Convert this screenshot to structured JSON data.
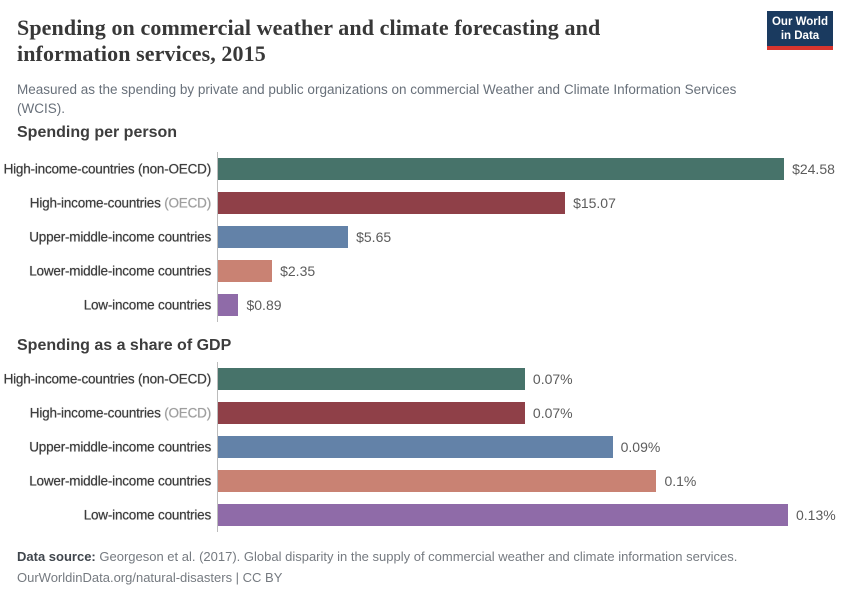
{
  "header": {
    "title": "Spending on commercial weather and climate forecasting and information services, 2015",
    "subtitle": "Measured as the spending by private and public organizations on commercial Weather and Climate Information Services (WCIS).",
    "logo": {
      "line1": "Our World",
      "line2": "in Data"
    }
  },
  "chart_data": [
    {
      "type": "bar",
      "title": "Spending per person",
      "xlabel": "",
      "ylabel": "",
      "xlim": [
        0,
        24.75
      ],
      "grid": false,
      "legend": false,
      "categories": [
        "High-income-countries (non-OECD)",
        "High-income-countries (OECD)",
        "Upper-middle-income countries",
        "Lower-middle-income countries",
        "Low-income countries"
      ],
      "values": [
        24.58,
        15.07,
        5.65,
        2.35,
        0.89
      ],
      "rows": [
        {
          "label": "High-income-countries (non-OECD)",
          "label_muted": "",
          "value": 24.58,
          "value_label": "$24.58",
          "color": "#47736a"
        },
        {
          "label": "High-income-countries",
          "label_muted": "(OECD)",
          "value": 15.07,
          "value_label": "$15.07",
          "color": "#8f4048"
        },
        {
          "label": "Upper-middle-income countries",
          "label_muted": "",
          "value": 5.65,
          "value_label": "$5.65",
          "color": "#6382a8"
        },
        {
          "label": "Lower-middle-income countries",
          "label_muted": "",
          "value": 2.35,
          "value_label": "$2.35",
          "color": "#c98273"
        },
        {
          "label": "Low-income countries",
          "label_muted": "",
          "value": 0.89,
          "value_label": "$0.89",
          "color": "#8f6ba8"
        }
      ]
    },
    {
      "type": "bar",
      "title": "Spending as a share of GDP",
      "xlabel": "",
      "ylabel": "",
      "xlim": [
        0,
        0.13
      ],
      "grid": false,
      "legend": false,
      "categories": [
        "High-income-countries (non-OECD)",
        "High-income-countries (OECD)",
        "Upper-middle-income countries",
        "Lower-middle-income countries",
        "Low-income countries"
      ],
      "values": [
        0.07,
        0.07,
        0.09,
        0.1,
        0.13
      ],
      "rows": [
        {
          "label": "High-income-countries (non-OECD)",
          "label_muted": "",
          "value": 0.07,
          "value_label": "0.07%",
          "color": "#47736a"
        },
        {
          "label": "High-income-countries",
          "label_muted": "(OECD)",
          "value": 0.07,
          "value_label": "0.07%",
          "color": "#8f4048"
        },
        {
          "label": "Upper-middle-income countries",
          "label_muted": "",
          "value": 0.09,
          "value_label": "0.09%",
          "color": "#6382a8"
        },
        {
          "label": "Lower-middle-income countries",
          "label_muted": "",
          "value": 0.1,
          "value_label": "0.1%",
          "color": "#c98273"
        },
        {
          "label": "Low-income countries",
          "label_muted": "",
          "value": 0.13,
          "value_label": "0.13%",
          "color": "#8f6ba8"
        }
      ]
    }
  ],
  "footer": {
    "source_label": "Data source:",
    "source_text": "Georgeson et al. (2017). Global disparity in the supply of commercial weather and climate information services.",
    "link_text": "OurWorldinData.org/natural-disasters | CC BY"
  }
}
